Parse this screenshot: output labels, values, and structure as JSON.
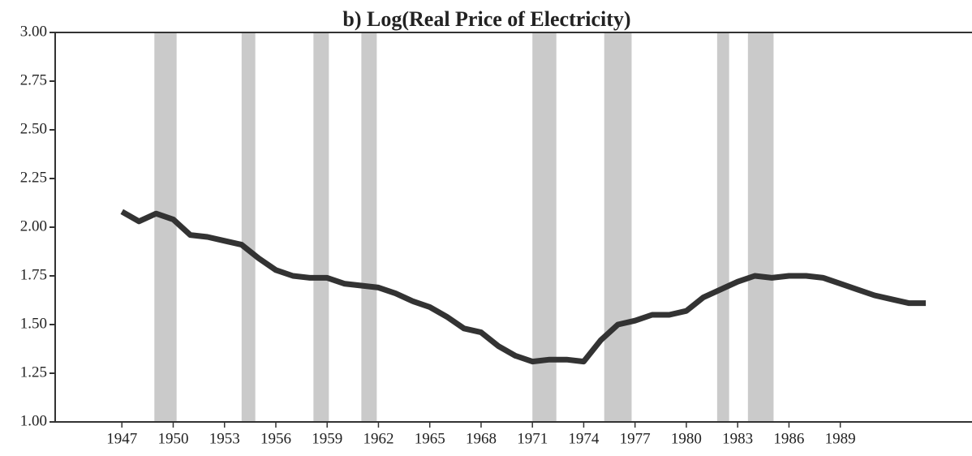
{
  "chart_data": {
    "type": "line",
    "title": "b) Log(Real Price of Electricity)",
    "x": [
      1947,
      1948,
      1949,
      1950,
      1951,
      1952,
      1953,
      1954,
      1955,
      1956,
      1957,
      1958,
      1959,
      1960,
      1961,
      1962,
      1963,
      1964,
      1965,
      1966,
      1967,
      1968,
      1969,
      1970,
      1971,
      1972,
      1973,
      1974,
      1975,
      1976,
      1977,
      1978,
      1979,
      1980,
      1981,
      1982,
      1983,
      1984,
      1985,
      1986,
      1987,
      1988,
      1989,
      1990,
      1991,
      1992,
      1993,
      1994
    ],
    "series": [
      {
        "color": "#333333",
        "values": [
          2.08,
          2.03,
          2.07,
          2.04,
          1.96,
          1.95,
          1.93,
          1.91,
          1.84,
          1.78,
          1.75,
          1.74,
          1.74,
          1.71,
          1.7,
          1.69,
          1.66,
          1.62,
          1.59,
          1.54,
          1.48,
          1.46,
          1.39,
          1.34,
          1.31,
          1.32,
          1.32,
          1.31,
          1.42,
          1.5,
          1.52,
          1.55,
          1.55,
          1.57,
          1.64,
          1.68,
          1.72,
          1.75,
          1.74,
          1.75,
          1.75,
          1.74,
          1.71,
          1.68,
          1.65,
          1.63,
          1.61,
          1.61
        ]
      }
    ],
    "shaded_periods": [
      [
        1948.9,
        1950.2
      ],
      [
        1954.0,
        1954.8
      ],
      [
        1958.2,
        1959.1
      ],
      [
        1961.0,
        1961.9
      ],
      [
        1971.0,
        1972.4
      ],
      [
        1975.2,
        1976.8
      ],
      [
        1981.8,
        1982.5
      ],
      [
        1983.6,
        1985.1
      ]
    ],
    "shade_color": "#b8b8b8",
    "xlim": [
      1943.1,
      1996.7
    ],
    "xticks": [
      1947,
      1950,
      1953,
      1956,
      1959,
      1962,
      1965,
      1968,
      1971,
      1974,
      1977,
      1980,
      1983,
      1986,
      1989
    ],
    "ylim": [
      1,
      3
    ],
    "yticks": [
      {
        "value": 1,
        "label": "1.00"
      },
      {
        "value": 1.25,
        "label": "1.25"
      },
      {
        "value": 1.5,
        "label": "1.50"
      },
      {
        "value": 1.75,
        "label": "1.75"
      },
      {
        "value": 2,
        "label": "2.00"
      },
      {
        "value": 2.25,
        "label": "2.25"
      },
      {
        "value": 2.5,
        "label": "2.50"
      },
      {
        "value": 2.75,
        "label": "2.75"
      },
      {
        "value": 3,
        "label": "3.00"
      }
    ]
  }
}
